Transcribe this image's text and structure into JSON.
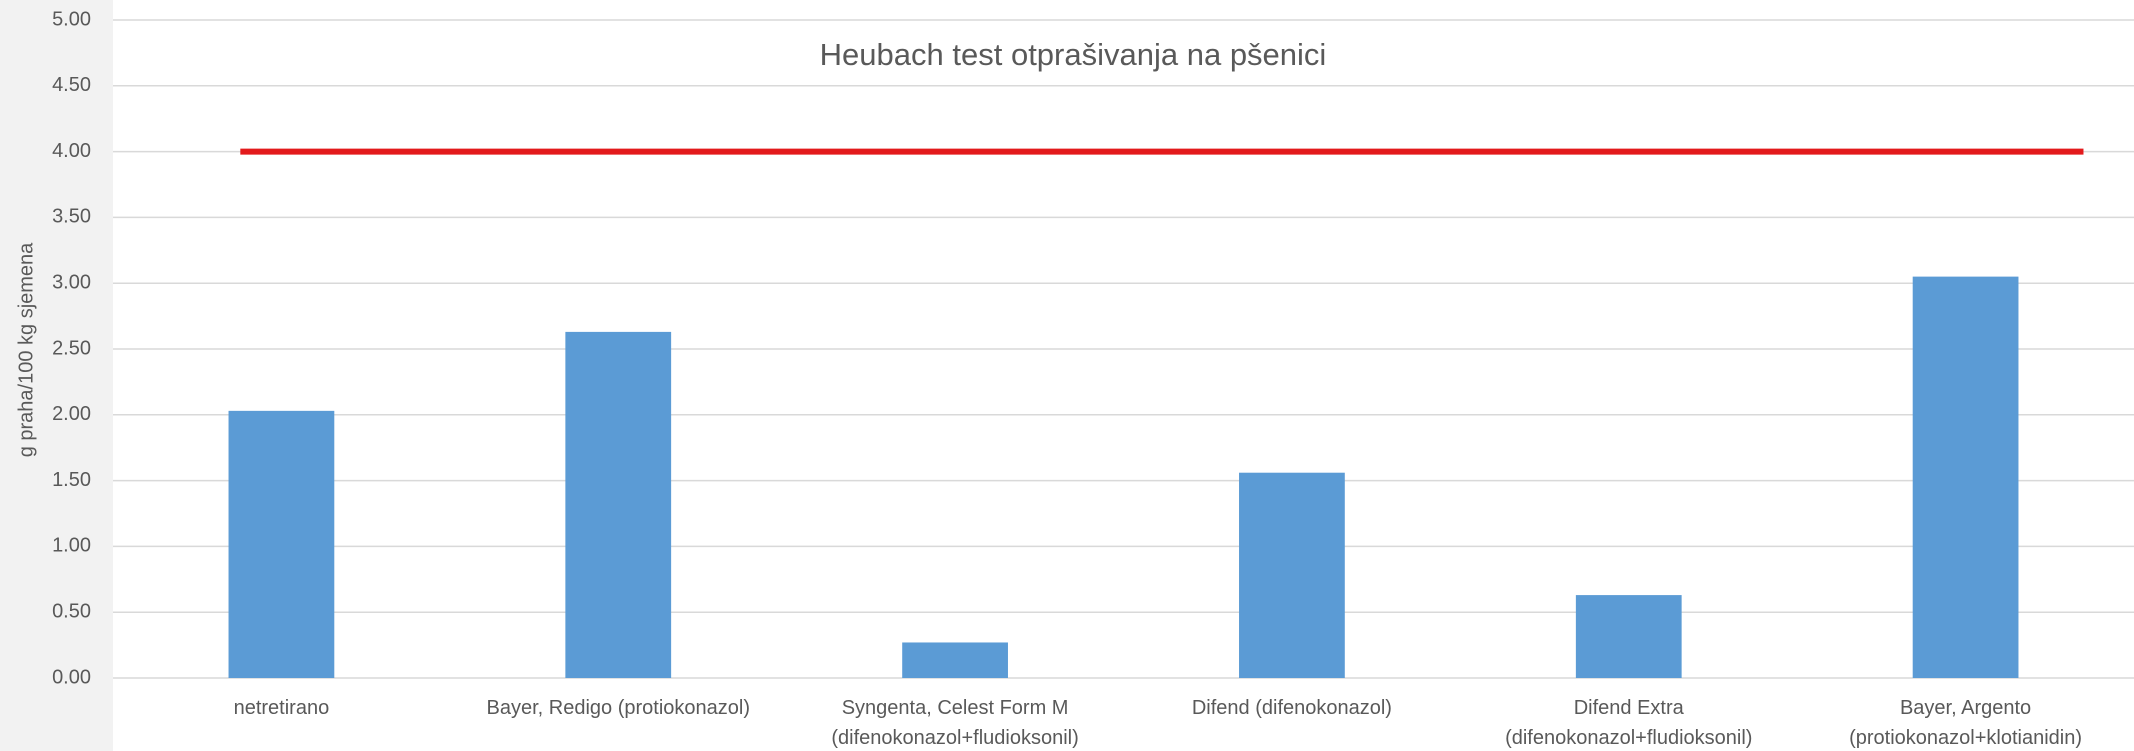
{
  "chart_data": {
    "type": "bar",
    "title": "Heubach test otprašivanja na pšenici",
    "y_label": "g praha/100 kg sjemena",
    "categories": [
      "netretirano",
      "Bayer, Redigo (protiokonazol)",
      "Syngenta, Celest Form M\n(difenokonazol+fludioksonil)",
      "Difend (difenokonazol)",
      "Difend Extra\n(difenokonazol+fludioksonil)",
      "Bayer, Argento\n(protiokonazol+klotianidin)"
    ],
    "values": [
      2.03,
      2.63,
      0.27,
      1.56,
      0.63,
      3.05
    ],
    "color": "#5b9bd5",
    "reference_line": {
      "value": 4,
      "color": "#e31a1c"
    },
    "ylim": [
      0,
      5
    ],
    "yticks": [
      {
        "value": 0,
        "label": "0.00"
      },
      {
        "value": 0.5,
        "label": "0.50"
      },
      {
        "value": 1,
        "label": "1.00"
      },
      {
        "value": 1.5,
        "label": "1.50"
      },
      {
        "value": 2,
        "label": "2.00"
      },
      {
        "value": 2.5,
        "label": "2.50"
      },
      {
        "value": 3,
        "label": "3.00"
      },
      {
        "value": 3.5,
        "label": "3.50"
      },
      {
        "value": 4,
        "label": "4.00"
      },
      {
        "value": 4.5,
        "label": "4.50"
      },
      {
        "value": 5,
        "label": "5.00"
      }
    ],
    "grid": true
  }
}
